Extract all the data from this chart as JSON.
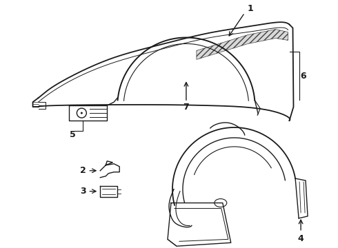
{
  "background_color": "#ffffff",
  "line_color": "#1a1a1a",
  "line_width": 1.0,
  "label_fontsize": 8,
  "figure_width": 4.9,
  "figure_height": 3.6,
  "dpi": 100
}
